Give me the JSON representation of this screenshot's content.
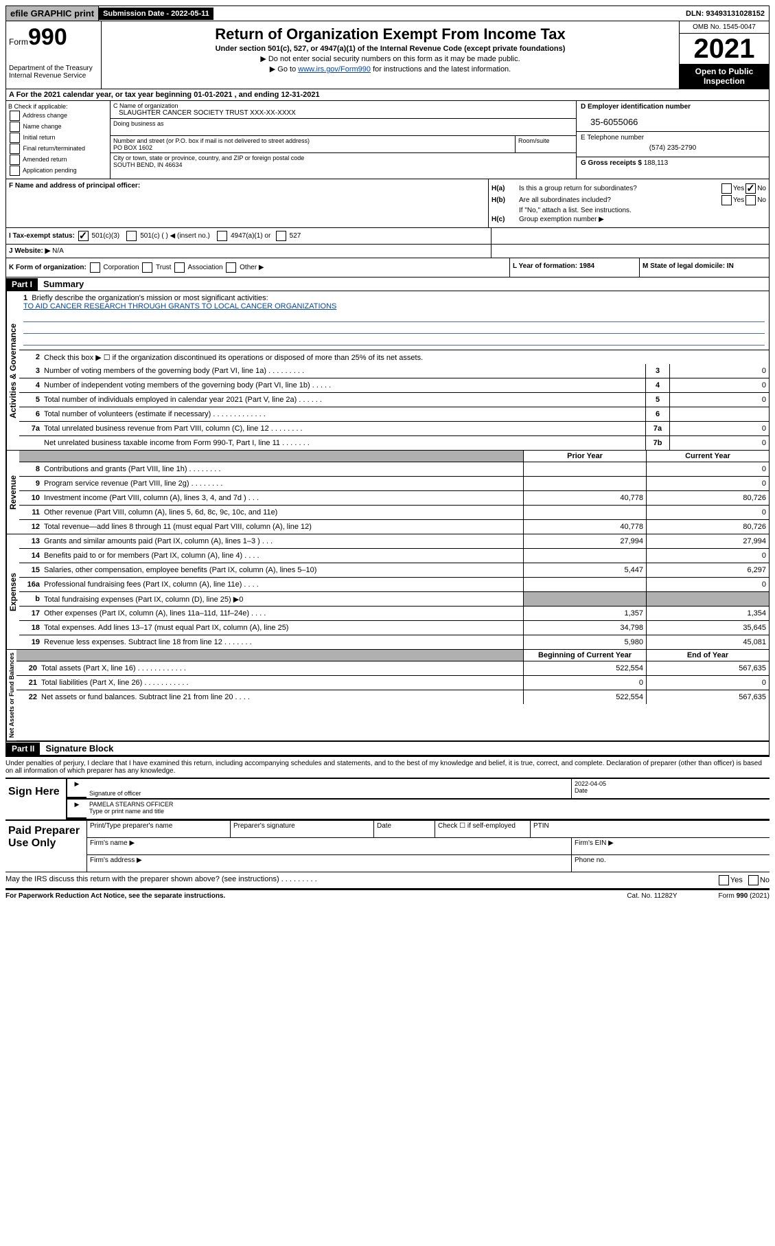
{
  "topbar": {
    "efile": "efile GRAPHIC print",
    "subm_label": "Submission Date - 2022-05-11",
    "dln": "DLN: 93493131028152"
  },
  "header": {
    "form_prefix": "Form",
    "form_num": "990",
    "dept": "Department of the Treasury",
    "irs": "Internal Revenue Service",
    "title": "Return of Organization Exempt From Income Tax",
    "sub": "Under section 501(c), 527, or 4947(a)(1) of the Internal Revenue Code (except private foundations)",
    "note1": "▶ Do not enter social security numbers on this form as it may be made public.",
    "note2_pre": "▶ Go to ",
    "note2_link": "www.irs.gov/Form990",
    "note2_post": " for instructions and the latest information.",
    "omb": "OMB No. 1545-0047",
    "year": "2021",
    "inspection": "Open to Public Inspection"
  },
  "sectionA": "A For the 2021 calendar year, or tax year beginning 01-01-2021   , and ending 12-31-2021",
  "boxB": {
    "label": "B Check if applicable:",
    "opts": [
      "Address change",
      "Name change",
      "Initial return",
      "Final return/terminated",
      "Amended return",
      "Application pending"
    ]
  },
  "boxC": {
    "name_label": "C Name of organization",
    "name": "SLAUGHTER CANCER SOCIETY TRUST XXX-XX-XXXX",
    "dba_label": "Doing business as",
    "street_label": "Number and street (or P.O. box if mail is not delivered to street address)",
    "room_label": "Room/suite",
    "street": "PO BOX 1602",
    "city_label": "City or town, state or province, country, and ZIP or foreign postal code",
    "city": "SOUTH BEND, IN  46634"
  },
  "boxD": {
    "ein_label": "D Employer identification number",
    "ein": "35-6055066",
    "tel_label": "E Telephone number",
    "tel": "(574) 235-2790",
    "gross_label": "G Gross receipts $",
    "gross": "188,113"
  },
  "boxF": "F  Name and address of principal officer:",
  "boxH": {
    "ha": "Is this a group return for subordinates?",
    "hb": "Are all subordinates included?",
    "hb_note": "If \"No,\" attach a list. See instructions.",
    "hc": "Group exemption number ▶"
  },
  "rowI": {
    "label": "I  Tax-exempt status:",
    "o1": "501(c)(3)",
    "o2": "501(c) (   ) ◀ (insert no.)",
    "o3": "4947(a)(1) or",
    "o4": "527"
  },
  "rowJ": {
    "label": "J  Website: ▶",
    "val": "N/A"
  },
  "rowK": "K Form of organization:",
  "rowK_opts": [
    "Corporation",
    "Trust",
    "Association",
    "Other ▶"
  ],
  "rowL": "L Year of formation: 1984",
  "rowM": "M State of legal domicile: IN",
  "part1": {
    "header": "Part I",
    "title": "Summary"
  },
  "mission": {
    "num": "1",
    "label": "Briefly describe the organization's mission or most significant activities:",
    "text": "TO AID CANCER RESEARCH THROUGH GRANTS TO LOCAL CANCER ORGANIZATIONS"
  },
  "gov_lines": [
    {
      "n": "2",
      "d": "Check this box ▶ ☐  if the organization discontinued its operations or disposed of more than 25% of its net assets."
    },
    {
      "n": "3",
      "d": "Number of voting members of the governing body (Part VI, line 1a)   .    .    .    .    .    .    .    .    .",
      "nc": "3",
      "v": "0"
    },
    {
      "n": "4",
      "d": "Number of independent voting members of the governing body (Part VI, line 1b)   .    .    .    .    .",
      "nc": "4",
      "v": "0"
    },
    {
      "n": "5",
      "d": "Total number of individuals employed in calendar year 2021 (Part V, line 2a)   .    .    .    .    .    .",
      "nc": "5",
      "v": "0"
    },
    {
      "n": "6",
      "d": "Total number of volunteers (estimate if necessary)   .    .    .    .    .    .    .    .    .    .    .    .    .",
      "nc": "6",
      "v": ""
    },
    {
      "n": "7a",
      "d": "Total unrelated business revenue from Part VIII, column (C), line 12   .    .    .    .    .    .    .    .",
      "nc": "7a",
      "v": "0"
    },
    {
      "n": "",
      "d": "Net unrelated business taxable income from Form 990-T, Part I, line 11   .    .    .    .    .    .    .",
      "nc": "7b",
      "v": "0"
    }
  ],
  "colheaders": {
    "py": "Prior Year",
    "cy": "Current Year"
  },
  "rev_lines": [
    {
      "n": "8",
      "d": "Contributions and grants (Part VIII, line 1h)   .    .    .    .    .    .    .    .",
      "py": "",
      "cy": "0"
    },
    {
      "n": "9",
      "d": "Program service revenue (Part VIII, line 2g)   .    .    .    .    .    .    .    .",
      "py": "",
      "cy": "0"
    },
    {
      "n": "10",
      "d": "Investment income (Part VIII, column (A), lines 3, 4, and 7d )   .    .    .",
      "py": "40,778",
      "cy": "80,726"
    },
    {
      "n": "11",
      "d": "Other revenue (Part VIII, column (A), lines 5, 6d, 8c, 9c, 10c, and 11e)",
      "py": "",
      "cy": "0"
    },
    {
      "n": "12",
      "d": "Total revenue—add lines 8 through 11 (must equal Part VIII, column (A), line 12)",
      "py": "40,778",
      "cy": "80,726"
    }
  ],
  "exp_lines": [
    {
      "n": "13",
      "d": "Grants and similar amounts paid (Part IX, column (A), lines 1–3 )   .    .    .",
      "py": "27,994",
      "cy": "27,994"
    },
    {
      "n": "14",
      "d": "Benefits paid to or for members (Part IX, column (A), line 4)   .    .    .    .",
      "py": "",
      "cy": "0"
    },
    {
      "n": "15",
      "d": "Salaries, other compensation, employee benefits (Part IX, column (A), lines 5–10)",
      "py": "5,447",
      "cy": "6,297"
    },
    {
      "n": "16a",
      "d": "Professional fundraising fees (Part IX, column (A), line 11e)   .    .    .    .",
      "py": "",
      "cy": "0"
    },
    {
      "n": "b",
      "d": "Total fundraising expenses (Part IX, column (D), line 25) ▶0",
      "py": "shaded",
      "cy": "shaded"
    },
    {
      "n": "17",
      "d": "Other expenses (Part IX, column (A), lines 11a–11d, 11f–24e)   .    .    .    .",
      "py": "1,357",
      "cy": "1,354"
    },
    {
      "n": "18",
      "d": "Total expenses. Add lines 13–17 (must equal Part IX, column (A), line 25)",
      "py": "34,798",
      "cy": "35,645"
    },
    {
      "n": "19",
      "d": "Revenue less expenses. Subtract line 18 from line 12   .    .    .    .    .    .    .",
      "py": "5,980",
      "cy": "45,081"
    }
  ],
  "colheaders2": {
    "py": "Beginning of Current Year",
    "cy": "End of Year"
  },
  "net_lines": [
    {
      "n": "20",
      "d": "Total assets (Part X, line 16)   .    .    .    .    .    .    .    .    .    .    .    .",
      "py": "522,554",
      "cy": "567,635"
    },
    {
      "n": "21",
      "d": "Total liabilities (Part X, line 26)   .    .    .    .    .    .    .    .    .    .    .",
      "py": "0",
      "cy": "0"
    },
    {
      "n": "22",
      "d": "Net assets or fund balances. Subtract line 21 from line 20   .    .    .    .",
      "py": "522,554",
      "cy": "567,635"
    }
  ],
  "part2": {
    "header": "Part II",
    "title": "Signature Block"
  },
  "sig_text": "Under penalties of perjury, I declare that I have examined this return, including accompanying schedules and statements, and to the best of my knowledge and belief, it is true, correct, and complete. Declaration of preparer (other than officer) is based on all information of which preparer has any knowledge.",
  "sign": {
    "label": "Sign Here",
    "sig_of": "Signature of officer",
    "date": "2022-04-05",
    "date_label": "Date",
    "name": "PAMELA STEARNS OFFICER",
    "name_label": "Type or print name and title"
  },
  "paid": {
    "label": "Paid Preparer Use Only",
    "h1": "Print/Type preparer's name",
    "h2": "Preparer's signature",
    "h3": "Date",
    "h4": "Check ☐ if self-employed",
    "h5": "PTIN",
    "firm_name": "Firm's name    ▶",
    "firm_ein": "Firm's EIN ▶",
    "firm_addr": "Firm's address ▶",
    "phone": "Phone no."
  },
  "discuss": "May the IRS discuss this return with the preparer shown above? (see instructions)   .    .    .    .    .    .    .    .    .",
  "footer": {
    "left": "For Paperwork Reduction Act Notice, see the separate instructions.",
    "mid": "Cat. No. 11282Y",
    "right": "Form 990 (2021)"
  },
  "vert": {
    "gov": "Activities & Governance",
    "rev": "Revenue",
    "exp": "Expenses",
    "net": "Net Assets or Fund Balances"
  }
}
